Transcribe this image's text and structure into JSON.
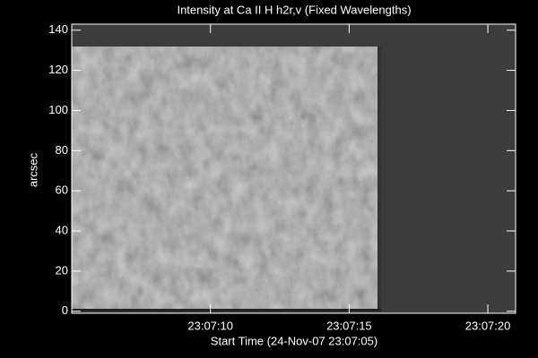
{
  "chart_data": {
    "type": "image",
    "title": "Intensity at Ca II H h2r,v (Fixed Wavelengths)",
    "xlabel": "Start Time (24-Nov-07 23:07:05)",
    "ylabel": "arcsec",
    "xlim": [
      0,
      16
    ],
    "xticks": [
      {
        "value": 5,
        "label": "23:07:10"
      },
      {
        "value": 10,
        "label": "23:07:15"
      },
      {
        "value": 15,
        "label": "23:07:20"
      }
    ],
    "ylim": [
      -1,
      143
    ],
    "yticks": [
      0,
      20,
      40,
      60,
      80,
      100,
      120,
      140
    ]
  }
}
